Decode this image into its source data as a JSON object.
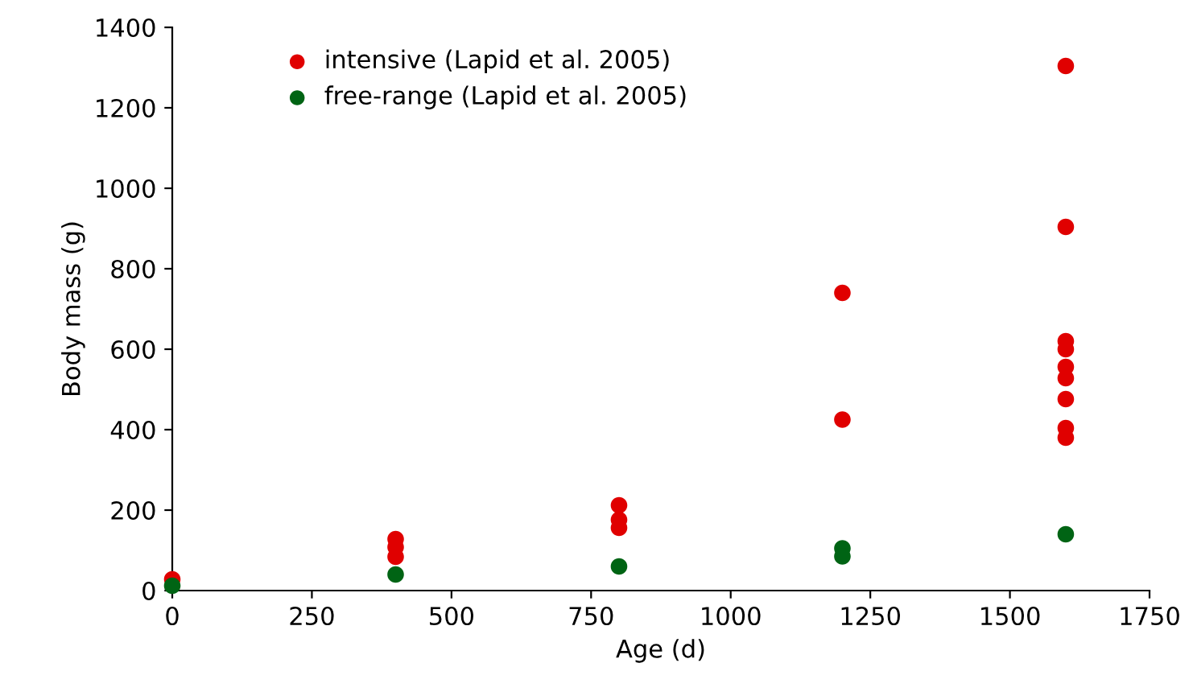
{
  "chart_data": {
    "type": "scatter",
    "xlabel": "Age (d)",
    "ylabel": "Body mass (g)",
    "series": [
      {
        "name": "intensive (Lapid et al. 2005)",
        "color": "#e00000",
        "x": [
          0,
          400,
          400,
          400,
          800,
          800,
          800,
          1200,
          1200,
          1600,
          1600,
          1600,
          1600,
          1600,
          1600,
          1600,
          1600,
          1600
        ],
        "values": [
          28,
          128,
          108,
          84,
          212,
          176,
          156,
          740,
          425,
          1304,
          904,
          620,
          600,
          556,
          528,
          476,
          404,
          380
        ]
      },
      {
        "name": "free-range (Lapid et al. 2005)",
        "color": "#006414",
        "x": [
          0,
          400,
          800,
          1200,
          1200,
          1600
        ],
        "values": [
          12,
          40,
          60,
          105,
          85,
          140
        ]
      }
    ],
    "xlim": [
      0,
      1750
    ],
    "xticks": [
      0,
      250,
      500,
      750,
      1000,
      1250,
      1500,
      1750
    ],
    "ylim": [
      0,
      1400
    ],
    "yticks": [
      0,
      200,
      400,
      600,
      800,
      1000,
      1200,
      1400
    ],
    "marker": "circle",
    "legend": "top left",
    "grid": false
  }
}
